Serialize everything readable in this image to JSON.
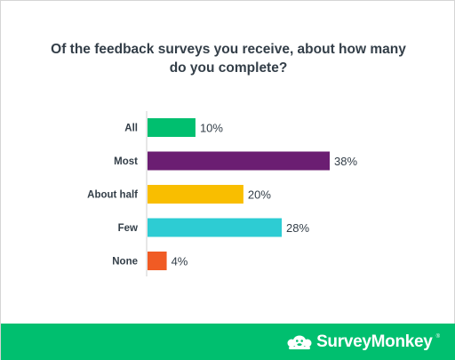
{
  "chart_data": {
    "type": "bar",
    "orientation": "horizontal",
    "title": [
      "Of the feedback surveys you receive, about how many",
      "do you complete?"
    ],
    "categories": [
      "All",
      "Most",
      "About half",
      "Few",
      "None"
    ],
    "values": [
      10,
      38,
      20,
      28,
      4
    ],
    "value_labels": [
      "10%",
      "38%",
      "20%",
      "28%",
      "4%"
    ],
    "colors": [
      "#00bf6f",
      "#6b1e72",
      "#f9be00",
      "#2dccd3",
      "#f05b24"
    ],
    "xlim": [
      0,
      38
    ],
    "grid": false,
    "legend": "none"
  },
  "footer": {
    "brand": "SurveyMonkey",
    "registered_mark": "®",
    "logo_icon": "surveymonkey-logo-icon",
    "color": "#00bf6f"
  }
}
